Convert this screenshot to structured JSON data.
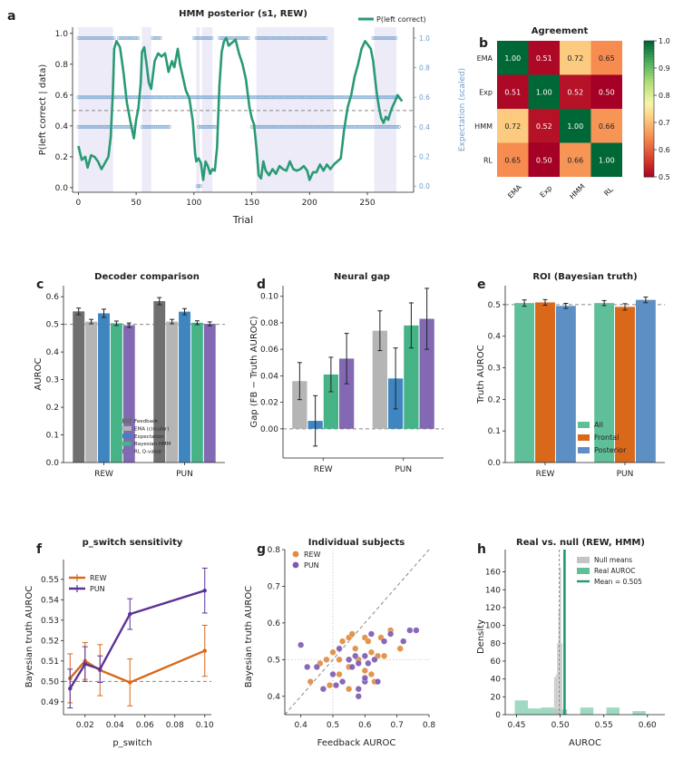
{
  "colors": {
    "bar_gray": "#6f6f6f",
    "bar_lightgray": "#b5b5b5",
    "bar_blue": "#3f86c0",
    "bar_green": "#45b386",
    "bar_purple": "#8368b3",
    "hmm_line": "#2a9a76",
    "exp_dots": "#6f9fcc",
    "shade": "#dcdaf0",
    "orange": "#d9681a",
    "purple": "#5a3396",
    "teal": "#5fbf98",
    "roi_blue": "#5d8fc5"
  },
  "panel_letters": [
    "a",
    "b",
    "c",
    "d",
    "e",
    "f",
    "g",
    "h"
  ],
  "chart_data": [
    {
      "id": "a",
      "type": "line",
      "title": "HMM posterior (s1, REW)",
      "xlabel": "Trial",
      "ylabel": "P(left correct | data)",
      "ylabel_right": "Expectation (scaled)",
      "xticks": [
        "0",
        "50",
        "100",
        "150",
        "200",
        "250"
      ],
      "yticks": [
        "0.0",
        "0.2",
        "0.4",
        "0.6",
        "0.8",
        "1.0"
      ],
      "yticks_right": [
        "0.0",
        "0.2",
        "0.4",
        "0.6",
        "0.8",
        "1.0"
      ],
      "xlim": [
        -5,
        290
      ],
      "ylim": [
        -0.03,
        1.04
      ],
      "legend": "P(left correct)",
      "legend_position": "top-right",
      "ref_line": 0.5,
      "x": [
        0,
        3,
        6,
        8,
        11,
        14,
        17,
        20,
        23,
        26,
        28,
        30,
        31,
        33,
        36,
        39,
        42,
        45,
        48,
        50,
        52,
        54,
        55,
        57,
        59,
        61,
        63,
        66,
        69,
        72,
        75,
        78,
        81,
        83,
        86,
        88,
        90,
        93,
        96,
        99,
        101,
        102,
        104,
        106,
        108,
        110,
        112,
        114,
        116,
        118,
        120,
        122,
        124,
        126,
        128,
        130,
        133,
        136,
        139,
        142,
        145,
        148,
        150,
        152,
        154,
        156,
        158,
        160,
        162,
        165,
        168,
        171,
        174,
        177,
        180,
        183,
        186,
        189,
        192,
        195,
        198,
        200,
        203,
        206,
        209,
        212,
        215,
        218,
        221,
        224,
        227,
        230,
        233,
        236,
        239,
        242,
        245,
        248,
        251,
        253,
        255,
        256,
        258,
        260,
        262,
        264,
        266,
        268,
        270,
        272,
        274,
        276,
        278,
        280
      ],
      "y": [
        0.27,
        0.18,
        0.2,
        0.13,
        0.21,
        0.2,
        0.17,
        0.12,
        0.16,
        0.2,
        0.33,
        0.64,
        0.9,
        0.95,
        0.91,
        0.75,
        0.55,
        0.43,
        0.32,
        0.44,
        0.52,
        0.68,
        0.88,
        0.91,
        0.8,
        0.68,
        0.64,
        0.82,
        0.87,
        0.85,
        0.87,
        0.75,
        0.82,
        0.78,
        0.9,
        0.8,
        0.73,
        0.63,
        0.58,
        0.43,
        0.22,
        0.17,
        0.19,
        0.16,
        0.05,
        0.17,
        0.14,
        0.09,
        0.12,
        0.11,
        0.26,
        0.66,
        0.88,
        0.95,
        0.97,
        0.92,
        0.94,
        0.96,
        0.87,
        0.8,
        0.7,
        0.52,
        0.45,
        0.41,
        0.26,
        0.08,
        0.06,
        0.17,
        0.11,
        0.08,
        0.12,
        0.09,
        0.14,
        0.12,
        0.11,
        0.17,
        0.12,
        0.11,
        0.12,
        0.14,
        0.11,
        0.05,
        0.1,
        0.1,
        0.15,
        0.11,
        0.15,
        0.12,
        0.15,
        0.17,
        0.19,
        0.38,
        0.52,
        0.6,
        0.72,
        0.8,
        0.9,
        0.95,
        0.92,
        0.9,
        0.82,
        0.75,
        0.62,
        0.52,
        0.45,
        0.42,
        0.46,
        0.44,
        0.49,
        0.53,
        0.56,
        0.6,
        0.58,
        0.56
      ],
      "shaded_trials": [
        [
          0,
          30
        ],
        [
          55,
          63
        ],
        [
          102,
          105
        ],
        [
          107,
          116
        ],
        [
          154,
          221
        ],
        [
          256,
          275
        ]
      ],
      "expectation_points_desc": "dots at scaled values 0.0, 0.4, 0.6 and 1.0 across trials"
    },
    {
      "id": "b",
      "type": "heatmap",
      "title": "Agreement",
      "labels": [
        "EMA",
        "Exp",
        "HMM",
        "RL"
      ],
      "values": [
        [
          1.0,
          0.51,
          0.72,
          0.65
        ],
        [
          0.51,
          1.0,
          0.52,
          0.5
        ],
        [
          0.72,
          0.52,
          1.0,
          0.66
        ],
        [
          0.65,
          0.5,
          0.66,
          1.0
        ]
      ],
      "value_labels": [
        [
          "1.00",
          "0.51",
          "0.72",
          "0.65"
        ],
        [
          "0.51",
          "1.00",
          "0.52",
          "0.50"
        ],
        [
          "0.72",
          "0.52",
          "1.00",
          "0.66"
        ],
        [
          "0.65",
          "0.50",
          "0.66",
          "1.00"
        ]
      ],
      "colorbar_ticks": [
        "0.5",
        "0.6",
        "0.7",
        "0.8",
        "0.9",
        "1.0"
      ],
      "vlim": [
        0.5,
        1.0
      ]
    },
    {
      "id": "c",
      "type": "bar",
      "title": "Decoder comparison",
      "ylabel": "AUROC",
      "categories": [
        "REW",
        "PUN"
      ],
      "ylim": [
        0,
        0.64
      ],
      "yticks": [
        "0.0",
        "0.1",
        "0.2",
        "0.3",
        "0.4",
        "0.5",
        "0.6"
      ],
      "ref_line": 0.5,
      "legend_position": "lower-right",
      "series": [
        {
          "name": "Feedback",
          "values": [
            0.547,
            0.584
          ],
          "err": [
            0.012,
            0.013
          ]
        },
        {
          "name": "EMA (circular)",
          "values": [
            0.51,
            0.51
          ],
          "err": [
            0.008,
            0.008
          ]
        },
        {
          "name": "Expectation",
          "values": [
            0.54,
            0.546
          ],
          "err": [
            0.015,
            0.011
          ]
        },
        {
          "name": "Bayesian HMM",
          "values": [
            0.504,
            0.506
          ],
          "err": [
            0.008,
            0.007
          ]
        },
        {
          "name": "RL Q-value",
          "values": [
            0.497,
            0.502
          ],
          "err": [
            0.008,
            0.007
          ]
        }
      ]
    },
    {
      "id": "d",
      "type": "bar",
      "title": "Neural gap",
      "ylabel": "Gap (FB − Truth AUROC)",
      "categories": [
        "REW",
        "PUN"
      ],
      "ylim": [
        -0.022,
        0.108
      ],
      "yticks": [
        "0.00",
        "0.02",
        "0.04",
        "0.06",
        "0.08",
        "0.10"
      ],
      "ref_line": 0.0,
      "series": [
        {
          "values": [
            0.036,
            0.074
          ],
          "err": [
            0.014,
            0.015
          ]
        },
        {
          "values": [
            0.006,
            0.038
          ],
          "err": [
            0.019,
            0.023
          ]
        },
        {
          "values": [
            0.041,
            0.078
          ],
          "err": [
            0.013,
            0.017
          ]
        },
        {
          "values": [
            0.053,
            0.083
          ],
          "err": [
            0.019,
            0.023
          ]
        }
      ]
    },
    {
      "id": "e",
      "type": "bar",
      "title": "ROI (Bayesian truth)",
      "ylabel": "Truth AUROC",
      "categories": [
        "REW",
        "PUN"
      ],
      "ylim": [
        0,
        0.56
      ],
      "yticks": [
        "0.0",
        "0.1",
        "0.2",
        "0.3",
        "0.4",
        "0.5"
      ],
      "ref_line": 0.5,
      "legend_position": "lower-right",
      "series": [
        {
          "name": "All",
          "values": [
            0.505,
            0.505
          ],
          "err": [
            0.01,
            0.008
          ]
        },
        {
          "name": "Frontal",
          "values": [
            0.507,
            0.493
          ],
          "err": [
            0.009,
            0.01
          ]
        },
        {
          "name": "Posterior",
          "values": [
            0.496,
            0.515
          ],
          "err": [
            0.008,
            0.009
          ]
        }
      ]
    },
    {
      "id": "f",
      "type": "line",
      "title": "p_switch sensitivity",
      "xlabel": "p_switch",
      "ylabel": "Bayesian truth AUROC",
      "xlim": [
        0.0056,
        0.1044
      ],
      "ylim": [
        0.4837,
        0.5597
      ],
      "xticks": [
        "0.02",
        "0.04",
        "0.06",
        "0.08",
        "0.10"
      ],
      "yticks": [
        "0.49",
        "0.50",
        "0.51",
        "0.52",
        "0.53",
        "0.54",
        "0.55"
      ],
      "ref_line": 0.5,
      "legend_position": "top-left",
      "series": [
        {
          "name": "REW",
          "x": [
            0.01,
            0.02,
            0.03,
            0.05,
            0.1
          ],
          "values": [
            0.5015,
            0.51,
            0.5055,
            0.4995,
            0.515
          ],
          "err": [
            0.012,
            0.009,
            0.0125,
            0.0115,
            0.0125
          ]
        },
        {
          "name": "PUN",
          "x": [
            0.01,
            0.02,
            0.03,
            0.05,
            0.1
          ],
          "values": [
            0.4965,
            0.5085,
            0.506,
            0.533,
            0.5445
          ],
          "err": [
            0.0095,
            0.0085,
            0.0065,
            0.0075,
            0.011
          ]
        }
      ]
    },
    {
      "id": "g",
      "type": "scatter",
      "title": "Individual subjects",
      "xlabel": "Feedback AUROC",
      "ylabel": "Bayesian truth AUROC",
      "xlim": [
        0.35,
        0.8
      ],
      "ylim": [
        0.35,
        0.8
      ],
      "xticks": [
        "0.4",
        "0.5",
        "0.6",
        "0.7",
        "0.8"
      ],
      "yticks": [
        "0.4",
        "0.5",
        "0.6",
        "0.7",
        "0.8"
      ],
      "legend_position": "top-left",
      "series": [
        {
          "name": "REW",
          "x": [
            0.43,
            0.46,
            0.48,
            0.5,
            0.52,
            0.53,
            0.55,
            0.55,
            0.56,
            0.57,
            0.58,
            0.6,
            0.6,
            0.61,
            0.62,
            0.63,
            0.64,
            0.65,
            0.66,
            0.68,
            0.71,
            0.55,
            0.62,
            0.49,
            0.52
          ],
          "y": [
            0.44,
            0.49,
            0.5,
            0.52,
            0.5,
            0.55,
            0.56,
            0.48,
            0.57,
            0.53,
            0.5,
            0.47,
            0.56,
            0.55,
            0.52,
            0.44,
            0.51,
            0.56,
            0.51,
            0.58,
            0.53,
            0.42,
            0.46,
            0.43,
            0.46
          ]
        },
        {
          "name": "PUN",
          "x": [
            0.4,
            0.42,
            0.45,
            0.47,
            0.5,
            0.51,
            0.53,
            0.55,
            0.56,
            0.57,
            0.58,
            0.58,
            0.6,
            0.6,
            0.61,
            0.62,
            0.63,
            0.64,
            0.66,
            0.68,
            0.72,
            0.74,
            0.76,
            0.52,
            0.6,
            0.58
          ],
          "y": [
            0.54,
            0.48,
            0.48,
            0.42,
            0.46,
            0.43,
            0.44,
            0.5,
            0.48,
            0.51,
            0.42,
            0.49,
            0.51,
            0.44,
            0.49,
            0.57,
            0.5,
            0.44,
            0.55,
            0.57,
            0.55,
            0.58,
            0.58,
            0.53,
            0.45,
            0.4
          ]
        }
      ]
    },
    {
      "id": "h",
      "type": "bar",
      "title": "Real vs. null (REW, HMM)",
      "xlabel": "AUROC",
      "ylabel": "Density",
      "xlim": [
        0.437,
        0.62
      ],
      "ylim": [
        0,
        185
      ],
      "xticks": [
        "0.45",
        "0.50",
        "0.55",
        "0.60"
      ],
      "yticks": [
        "0",
        "20",
        "40",
        "60",
        "80",
        "100",
        "120",
        "140",
        "160"
      ],
      "legend_position": "top-right",
      "mean_value": 0.505,
      "mean_label": "Mean = 0.505",
      "series": [
        {
          "name": "Null means",
          "bins": [
            [
              0.493,
              0.495,
              42
            ],
            [
              0.495,
              0.4965,
              45
            ],
            [
              0.4965,
              0.498,
              80
            ],
            [
              0.498,
              0.4995,
              118
            ],
            [
              0.4995,
              0.501,
              165
            ],
            [
              0.501,
              0.5025,
              80
            ]
          ]
        },
        {
          "name": "Real AUROC",
          "bins": [
            [
              0.448,
              0.463,
              16
            ],
            [
              0.463,
              0.478,
              7
            ],
            [
              0.478,
              0.493,
              8
            ],
            [
              0.493,
              0.508,
              6
            ],
            [
              0.523,
              0.538,
              8
            ],
            [
              0.553,
              0.568,
              8
            ],
            [
              0.583,
              0.598,
              4
            ]
          ]
        }
      ]
    }
  ]
}
